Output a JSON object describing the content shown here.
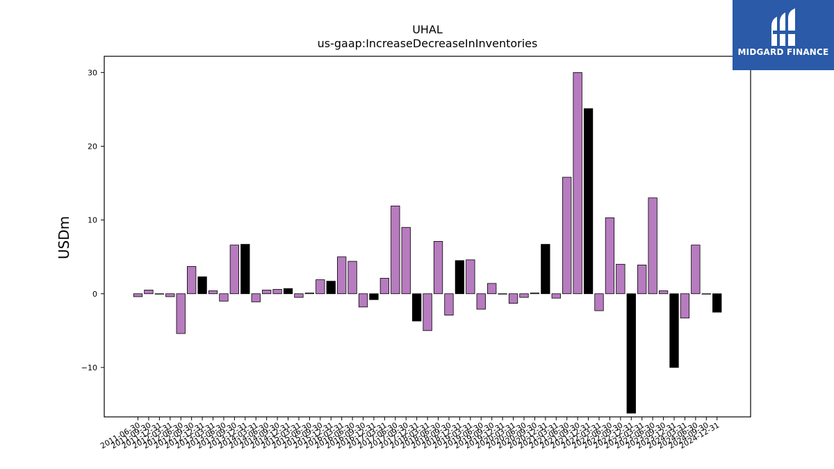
{
  "chart_data": {
    "type": "bar",
    "title": "UHAL",
    "subtitle": "us-gaap:IncreaseDecreaseInInventories",
    "xlabel": "",
    "ylabel": "USDm",
    "ylim": [
      -16.7,
      32.2
    ],
    "yticks": [
      -10,
      0,
      10,
      20,
      30
    ],
    "ytick_labels": [
      "−10",
      "0",
      "10",
      "20",
      "30"
    ],
    "grid": false,
    "legend": "none",
    "colors": {
      "quarter": "#b77bbf",
      "annual": "#000000",
      "edge": "#000000"
    },
    "categories": [
      "2011-06-30",
      "2011-09-30",
      "2011-12-31",
      "2012-03-31",
      "2012-06-30",
      "2012-09-30",
      "2012-12-31",
      "2013-03-31",
      "2013-06-30",
      "2013-09-30",
      "2013-12-31",
      "2014-03-31",
      "2014-06-30",
      "2014-09-30",
      "2014-12-31",
      "2015-03-31",
      "2015-06-30",
      "2015-09-30",
      "2015-12-31",
      "2016-03-31",
      "2016-06-30",
      "2016-09-30",
      "2016-12-31",
      "2017-03-31",
      "2017-06-30",
      "2017-09-30",
      "2017-12-31",
      "2018-03-31",
      "2018-06-30",
      "2018-09-30",
      "2018-12-31",
      "2019-03-31",
      "2019-06-30",
      "2019-09-30",
      "2019-12-31",
      "2020-03-31",
      "2020-06-30",
      "2020-09-30",
      "2020-12-31",
      "2021-03-31",
      "2021-06-30",
      "2021-09-30",
      "2021-12-31",
      "2022-03-31",
      "2022-06-30",
      "2022-09-30",
      "2022-12-31",
      "2023-03-31",
      "2023-06-30",
      "2023-09-30",
      "2023-12-31",
      "2024-03-31",
      "2024-06-30",
      "2024-09-30",
      "2024-12-31"
    ],
    "values": [
      -0.4,
      0.5,
      0.0,
      -0.4,
      -5.4,
      3.7,
      2.3,
      0.4,
      -1.0,
      6.6,
      6.7,
      -1.1,
      0.5,
      0.6,
      0.7,
      -0.5,
      0.1,
      1.9,
      1.7,
      5.0,
      4.4,
      -1.8,
      -0.8,
      2.1,
      11.9,
      9.0,
      -3.7,
      -5.0,
      7.1,
      -2.9,
      4.5,
      4.6,
      -2.1,
      1.4,
      0.0,
      -1.3,
      -0.5,
      0.1,
      6.7,
      -0.6,
      15.8,
      30.0,
      25.1,
      -2.3,
      10.3,
      4.0,
      -16.2,
      3.9,
      13.0,
      0.4,
      -10.0,
      -3.3,
      6.6,
      0.0,
      -2.5
    ],
    "annual": [
      false,
      false,
      false,
      false,
      false,
      false,
      true,
      false,
      false,
      false,
      true,
      false,
      false,
      false,
      true,
      false,
      false,
      false,
      true,
      false,
      false,
      false,
      true,
      false,
      false,
      false,
      true,
      false,
      false,
      false,
      true,
      false,
      false,
      false,
      true,
      false,
      false,
      false,
      true,
      false,
      false,
      false,
      true,
      false,
      false,
      false,
      true,
      false,
      false,
      false,
      true,
      false,
      false,
      false,
      true
    ]
  },
  "logo": {
    "text": "MIDGARD FINANCE",
    "icon": "midgard-logo-icon"
  }
}
